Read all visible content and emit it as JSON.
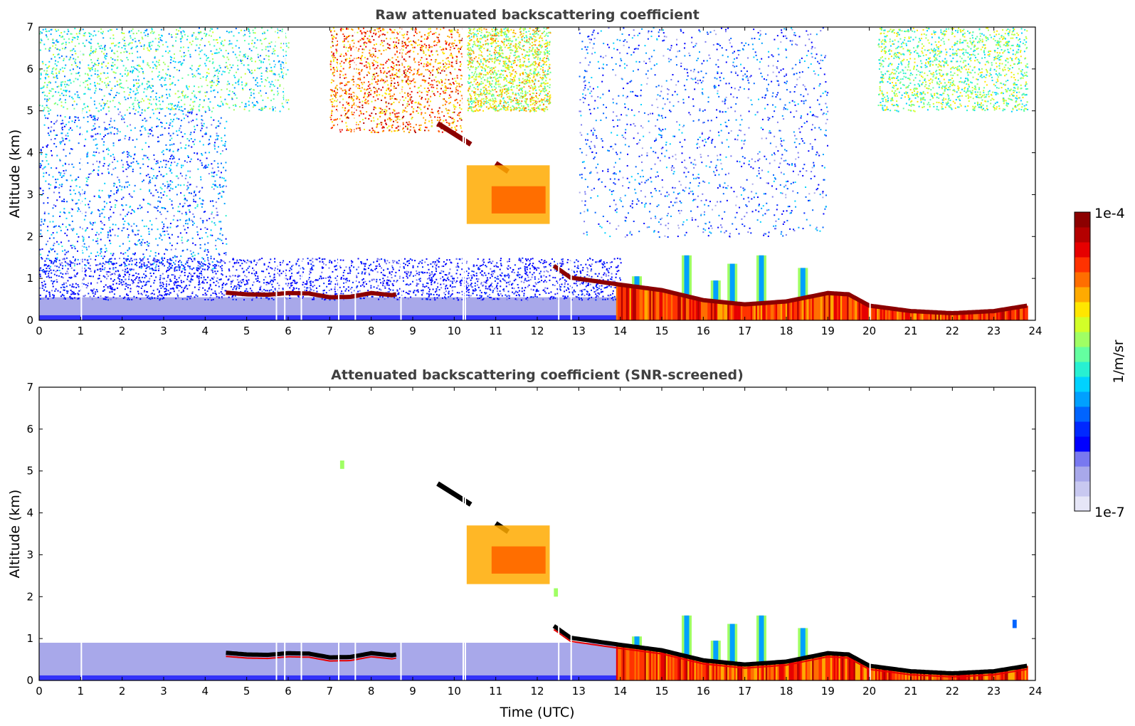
{
  "chart_data": [
    {
      "type": "heatmap",
      "title": "Raw attenuated backscattering coefficient",
      "xlabel": "",
      "ylabel": "Altitude (km)",
      "xlim": [
        0,
        24
      ],
      "ylim": [
        0,
        7
      ],
      "xticks": [
        0,
        1,
        2,
        3,
        4,
        5,
        6,
        7,
        8,
        9,
        10,
        11,
        12,
        13,
        14,
        15,
        16,
        17,
        18,
        19,
        20,
        21,
        22,
        23,
        24
      ],
      "yticks": [
        0,
        1,
        2,
        3,
        4,
        5,
        6,
        7
      ],
      "background_noise": [
        {
          "t0": 0,
          "t1": 4.5,
          "z0": 1.2,
          "z1": 5.0,
          "level": 0.32
        },
        {
          "t0": 0,
          "t1": 6,
          "z0": 5.0,
          "z1": 7.0,
          "level": 0.48
        },
        {
          "t0": 7,
          "t1": 10.2,
          "z0": 4.5,
          "z1": 7.0,
          "level": 0.78
        },
        {
          "t0": 10.3,
          "t1": 12.3,
          "z0": 5.0,
          "z1": 7.0,
          "level": 0.62
        },
        {
          "t0": 13,
          "t1": 19,
          "z0": 2.0,
          "z1": 7.0,
          "level": 0.28
        },
        {
          "t0": 20.2,
          "t1": 23.8,
          "z0": 5.0,
          "z1": 7.0,
          "level": 0.55
        }
      ],
      "boundary_layer": {
        "top_km": 0.55,
        "t0": 0,
        "t1": 14.0,
        "level": 0.1
      },
      "cloud_layer": [
        {
          "t": 4.5,
          "z": 0.66
        },
        {
          "t": 5.0,
          "z": 0.62
        },
        {
          "t": 5.5,
          "z": 0.61
        },
        {
          "t": 6.0,
          "z": 0.65
        },
        {
          "t": 6.5,
          "z": 0.64
        },
        {
          "t": 7.0,
          "z": 0.55
        },
        {
          "t": 7.5,
          "z": 0.56
        },
        {
          "t": 8.0,
          "z": 0.65
        },
        {
          "t": 8.5,
          "z": 0.6
        },
        {
          "t": 12.4,
          "z": 1.3
        },
        {
          "t": 12.8,
          "z": 1.02
        },
        {
          "t": 13.5,
          "z": 0.92
        },
        {
          "t": 14.0,
          "z": 0.85
        },
        {
          "t": 15.0,
          "z": 0.72
        },
        {
          "t": 16.0,
          "z": 0.48
        },
        {
          "t": 17.0,
          "z": 0.38
        },
        {
          "t": 18.0,
          "z": 0.45
        },
        {
          "t": 19.0,
          "z": 0.65
        },
        {
          "t": 19.5,
          "z": 0.62
        },
        {
          "t": 20.0,
          "z": 0.35
        },
        {
          "t": 21.0,
          "z": 0.22
        },
        {
          "t": 22.0,
          "z": 0.17
        },
        {
          "t": 23.0,
          "z": 0.22
        },
        {
          "t": 23.8,
          "z": 0.35
        }
      ],
      "elevated_layers": [
        {
          "t0": 9.6,
          "t1": 10.4,
          "z_start": 4.7,
          "z_end": 4.2,
          "level": 0.98
        },
        {
          "t0": 11.0,
          "t1": 11.3,
          "z_start": 3.75,
          "z_end": 3.55,
          "level": 0.97
        },
        {
          "t0": 10.3,
          "t1": 12.3,
          "z_start": 3.7,
          "z_end": 2.3,
          "level": 0.78
        }
      ],
      "convective_plumes": [
        {
          "t": 14.4,
          "top": 1.05
        },
        {
          "t": 15.6,
          "top": 1.55
        },
        {
          "t": 16.3,
          "top": 0.95
        },
        {
          "t": 16.7,
          "top": 1.35
        },
        {
          "t": 17.4,
          "top": 1.55
        },
        {
          "t": 18.4,
          "top": 1.25
        }
      ]
    },
    {
      "type": "heatmap",
      "title": "Attenuated backscattering coefficient (SNR-screened)",
      "xlabel": "Time (UTC)",
      "ylabel": "Altitude (km)",
      "xlim": [
        0,
        24
      ],
      "ylim": [
        0,
        7
      ],
      "xticks": [
        0,
        1,
        2,
        3,
        4,
        5,
        6,
        7,
        8,
        9,
        10,
        11,
        12,
        13,
        14,
        15,
        16,
        17,
        18,
        19,
        20,
        21,
        22,
        23,
        24
      ],
      "yticks": [
        0,
        1,
        2,
        3,
        4,
        5,
        6,
        7
      ],
      "boundary_layer": {
        "top_km": 0.9,
        "t0": 0,
        "t1": 14.0,
        "level": 0.1
      },
      "isolated_features": [
        {
          "t": 7.3,
          "z": 5.15,
          "level": 0.55
        },
        {
          "t": 12.45,
          "z": 2.1,
          "level": 0.55
        },
        {
          "t": 23.5,
          "z": 1.35,
          "level": 0.3
        }
      ]
    }
  ],
  "colorbar": {
    "label": "1/m/sr",
    "min_label": "1e-7",
    "max_label": "1e-4",
    "colors": [
      "#e6e6f7",
      "#c8c8f0",
      "#a8a8ea",
      "#7878f0",
      "#0000ff",
      "#0028ff",
      "#0064ff",
      "#00a0ff",
      "#00d2ff",
      "#28f0d2",
      "#64ffa0",
      "#a0ff64",
      "#d2ff28",
      "#ffe600",
      "#ffaa00",
      "#ff6e00",
      "#ff3200",
      "#e60000",
      "#b40000",
      "#8c0000"
    ]
  }
}
